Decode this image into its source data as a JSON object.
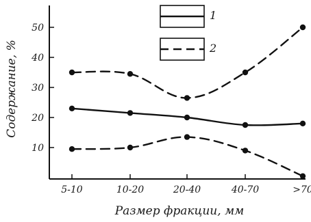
{
  "chart_data": {
    "type": "line",
    "xlabel": "Размер фракции, мм",
    "ylabel": "Содержание, %",
    "categories": [
      "5-10",
      "10-20",
      "20-40",
      "40-70",
      ">70"
    ],
    "ylim": [
      0,
      55
    ],
    "yticks": [
      10,
      20,
      30,
      40,
      50
    ],
    "grid": false,
    "legend": {
      "placement": "top-center",
      "entries": [
        {
          "label": "1",
          "style": "solid"
        },
        {
          "label": "2",
          "style": "dashed"
        }
      ]
    },
    "series": [
      {
        "label": "1",
        "style": "solid",
        "values": [
          23,
          21.5,
          20,
          17.5,
          18
        ]
      },
      {
        "label": "2",
        "style": "dashed",
        "values": [
          35,
          34.5,
          26.5,
          35,
          50
        ]
      },
      {
        "label": "2",
        "style": "dashed",
        "values": [
          9.5,
          10,
          13.5,
          9,
          0.5
        ]
      }
    ],
    "colors": {
      "ink": "#111111",
      "background": "#ffffff"
    }
  }
}
